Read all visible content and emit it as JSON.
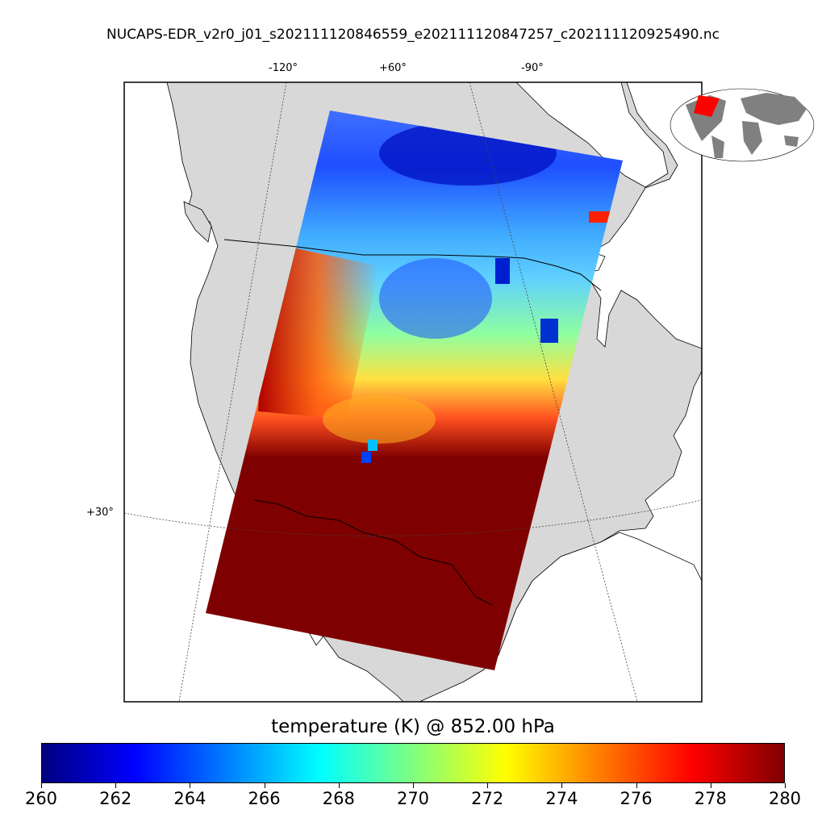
{
  "title": "NUCAPS-EDR_v2r0_j01_s202111120846559_e202111120847257_c202111120925490.nc",
  "map": {
    "lon_labels": [
      "-120°",
      "+60°",
      "-90°"
    ],
    "lat_labels": [
      "+30°"
    ],
    "land_color": "#d8d8d8",
    "ocean_color": "#ffffff",
    "inset_land_color": "#808080",
    "inset_highlight_color": "#ff0000"
  },
  "colorbar": {
    "label": "temperature (K) @ 852.00 hPa",
    "min": 260,
    "max": 280,
    "ticks": [
      "260",
      "262",
      "264",
      "266",
      "268",
      "270",
      "272",
      "274",
      "276",
      "278",
      "280"
    ],
    "colormap": "jet"
  }
}
